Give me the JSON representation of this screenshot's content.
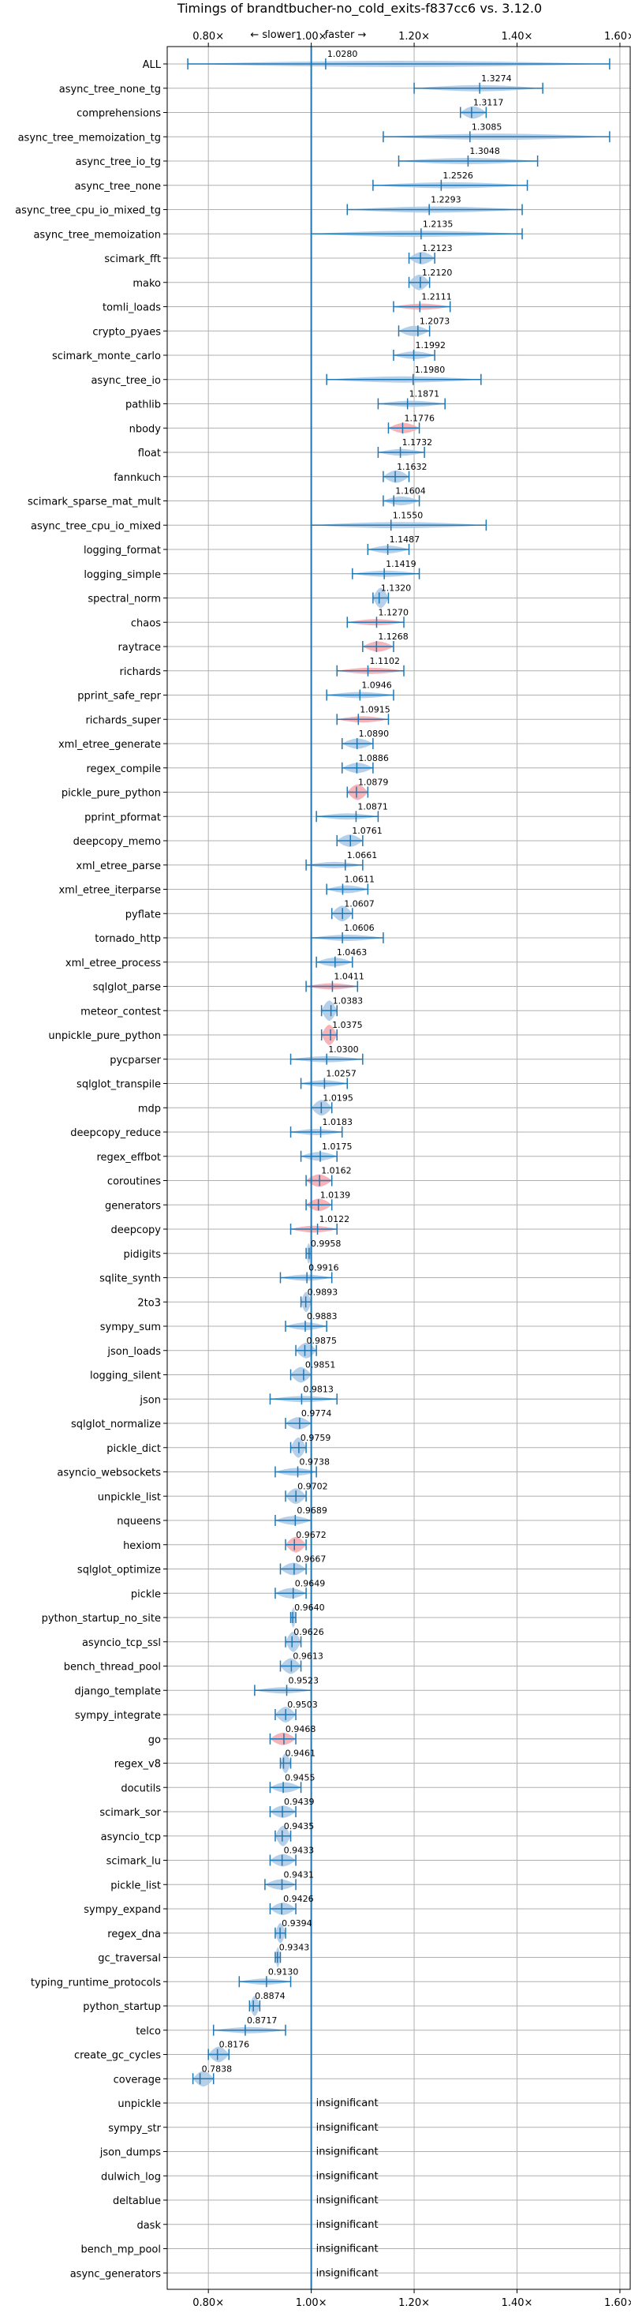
{
  "chart_data": {
    "type": "violin",
    "title": "Timings of brandtbucher-no_cold_exits-f837cc6 vs. 3.12.0",
    "xlabel": "",
    "ylabel": "",
    "x_scale": "linear",
    "xlim": [
      0.72,
      1.62
    ],
    "xticks": [
      0.8,
      1.0,
      1.2,
      1.4,
      1.6
    ],
    "xtick_labels": [
      "0.80×",
      "1.00×",
      "1.20×",
      "1.40×",
      "1.60×"
    ],
    "slower_label": "← slower",
    "faster_label": "faster →",
    "reference_line": 1.0,
    "grid": true,
    "insignificant_label": "insignificant",
    "colors": {
      "normal": "#a9c8e6",
      "highlight": "#f4a6ab",
      "line": "#1f77b4",
      "grid": "#b0b0b0"
    },
    "benchmarks": [
      {
        "name": "ALL",
        "value": 1.028,
        "label": "1.0280",
        "min": 0.76,
        "max": 1.58,
        "highlight": false,
        "insignificant": false
      },
      {
        "name": "async_tree_none_tg",
        "value": 1.3274,
        "label": "1.3274",
        "min": 1.2,
        "max": 1.45,
        "highlight": false,
        "insignificant": false
      },
      {
        "name": "comprehensions",
        "value": 1.3117,
        "label": "1.3117",
        "min": 1.29,
        "max": 1.34,
        "highlight": false,
        "insignificant": false
      },
      {
        "name": "async_tree_memoization_tg",
        "value": 1.3085,
        "label": "1.3085",
        "min": 1.14,
        "max": 1.58,
        "highlight": false,
        "insignificant": false
      },
      {
        "name": "async_tree_io_tg",
        "value": 1.3048,
        "label": "1.3048",
        "min": 1.17,
        "max": 1.44,
        "highlight": false,
        "insignificant": false
      },
      {
        "name": "async_tree_none",
        "value": 1.2526,
        "label": "1.2526",
        "min": 1.12,
        "max": 1.42,
        "highlight": false,
        "insignificant": false
      },
      {
        "name": "async_tree_cpu_io_mixed_tg",
        "value": 1.2293,
        "label": "1.2293",
        "min": 1.07,
        "max": 1.41,
        "highlight": false,
        "insignificant": false
      },
      {
        "name": "async_tree_memoization",
        "value": 1.2135,
        "label": "1.2135",
        "min": 1.0,
        "max": 1.41,
        "highlight": false,
        "insignificant": false
      },
      {
        "name": "scimark_fft",
        "value": 1.2123,
        "label": "1.2123",
        "min": 1.19,
        "max": 1.24,
        "highlight": false,
        "insignificant": false
      },
      {
        "name": "mako",
        "value": 1.212,
        "label": "1.2120",
        "min": 1.19,
        "max": 1.23,
        "highlight": false,
        "insignificant": false
      },
      {
        "name": "tomli_loads",
        "value": 1.2111,
        "label": "1.2111",
        "min": 1.16,
        "max": 1.27,
        "highlight": true,
        "insignificant": false
      },
      {
        "name": "crypto_pyaes",
        "value": 1.2073,
        "label": "1.2073",
        "min": 1.17,
        "max": 1.23,
        "highlight": false,
        "insignificant": false
      },
      {
        "name": "scimark_monte_carlo",
        "value": 1.1992,
        "label": "1.1992",
        "min": 1.16,
        "max": 1.24,
        "highlight": false,
        "insignificant": false
      },
      {
        "name": "async_tree_io",
        "value": 1.198,
        "label": "1.1980",
        "min": 1.03,
        "max": 1.33,
        "highlight": false,
        "insignificant": false
      },
      {
        "name": "pathlib",
        "value": 1.1871,
        "label": "1.1871",
        "min": 1.13,
        "max": 1.26,
        "highlight": false,
        "insignificant": false
      },
      {
        "name": "nbody",
        "value": 1.1776,
        "label": "1.1776",
        "min": 1.15,
        "max": 1.21,
        "highlight": true,
        "insignificant": false
      },
      {
        "name": "float",
        "value": 1.1732,
        "label": "1.1732",
        "min": 1.13,
        "max": 1.22,
        "highlight": false,
        "insignificant": false
      },
      {
        "name": "fannkuch",
        "value": 1.1632,
        "label": "1.1632",
        "min": 1.14,
        "max": 1.19,
        "highlight": false,
        "insignificant": false
      },
      {
        "name": "scimark_sparse_mat_mult",
        "value": 1.1604,
        "label": "1.1604",
        "min": 1.14,
        "max": 1.21,
        "highlight": false,
        "insignificant": false
      },
      {
        "name": "async_tree_cpu_io_mixed",
        "value": 1.155,
        "label": "1.1550",
        "min": 1.0,
        "max": 1.34,
        "highlight": false,
        "insignificant": false
      },
      {
        "name": "logging_format",
        "value": 1.1487,
        "label": "1.1487",
        "min": 1.11,
        "max": 1.19,
        "highlight": false,
        "insignificant": false
      },
      {
        "name": "logging_simple",
        "value": 1.1419,
        "label": "1.1419",
        "min": 1.08,
        "max": 1.21,
        "highlight": false,
        "insignificant": false
      },
      {
        "name": "spectral_norm",
        "value": 1.132,
        "label": "1.1320",
        "min": 1.12,
        "max": 1.15,
        "highlight": false,
        "insignificant": false
      },
      {
        "name": "chaos",
        "value": 1.127,
        "label": "1.1270",
        "min": 1.07,
        "max": 1.18,
        "highlight": true,
        "insignificant": false
      },
      {
        "name": "raytrace",
        "value": 1.1268,
        "label": "1.1268",
        "min": 1.1,
        "max": 1.16,
        "highlight": true,
        "insignificant": false
      },
      {
        "name": "richards",
        "value": 1.1102,
        "label": "1.1102",
        "min": 1.05,
        "max": 1.18,
        "highlight": true,
        "insignificant": false
      },
      {
        "name": "pprint_safe_repr",
        "value": 1.0946,
        "label": "1.0946",
        "min": 1.03,
        "max": 1.16,
        "highlight": false,
        "insignificant": false
      },
      {
        "name": "richards_super",
        "value": 1.0915,
        "label": "1.0915",
        "min": 1.05,
        "max": 1.15,
        "highlight": true,
        "insignificant": false
      },
      {
        "name": "xml_etree_generate",
        "value": 1.089,
        "label": "1.0890",
        "min": 1.06,
        "max": 1.12,
        "highlight": false,
        "insignificant": false
      },
      {
        "name": "regex_compile",
        "value": 1.0886,
        "label": "1.0886",
        "min": 1.06,
        "max": 1.12,
        "highlight": false,
        "insignificant": false
      },
      {
        "name": "pickle_pure_python",
        "value": 1.0879,
        "label": "1.0879",
        "min": 1.07,
        "max": 1.11,
        "highlight": true,
        "insignificant": false
      },
      {
        "name": "pprint_pformat",
        "value": 1.0871,
        "label": "1.0871",
        "min": 1.01,
        "max": 1.13,
        "highlight": false,
        "insignificant": false
      },
      {
        "name": "deepcopy_memo",
        "value": 1.0761,
        "label": "1.0761",
        "min": 1.05,
        "max": 1.1,
        "highlight": false,
        "insignificant": false
      },
      {
        "name": "xml_etree_parse",
        "value": 1.0661,
        "label": "1.0661",
        "min": 0.99,
        "max": 1.1,
        "highlight": false,
        "insignificant": false
      },
      {
        "name": "xml_etree_iterparse",
        "value": 1.0611,
        "label": "1.0611",
        "min": 1.03,
        "max": 1.11,
        "highlight": false,
        "insignificant": false
      },
      {
        "name": "pyflate",
        "value": 1.0607,
        "label": "1.0607",
        "min": 1.04,
        "max": 1.08,
        "highlight": false,
        "insignificant": false
      },
      {
        "name": "tornado_http",
        "value": 1.0606,
        "label": "1.0606",
        "min": 1.0,
        "max": 1.14,
        "highlight": false,
        "insignificant": false
      },
      {
        "name": "xml_etree_process",
        "value": 1.0463,
        "label": "1.0463",
        "min": 1.01,
        "max": 1.08,
        "highlight": false,
        "insignificant": false
      },
      {
        "name": "sqlglot_parse",
        "value": 1.0411,
        "label": "1.0411",
        "min": 0.99,
        "max": 1.09,
        "highlight": true,
        "insignificant": false
      },
      {
        "name": "meteor_contest",
        "value": 1.0383,
        "label": "1.0383",
        "min": 1.02,
        "max": 1.05,
        "highlight": false,
        "insignificant": false
      },
      {
        "name": "unpickle_pure_python",
        "value": 1.0375,
        "label": "1.0375",
        "min": 1.02,
        "max": 1.05,
        "highlight": true,
        "insignificant": false
      },
      {
        "name": "pycparser",
        "value": 1.03,
        "label": "1.0300",
        "min": 0.96,
        "max": 1.1,
        "highlight": false,
        "insignificant": false
      },
      {
        "name": "sqlglot_transpile",
        "value": 1.0257,
        "label": "1.0257",
        "min": 0.98,
        "max": 1.07,
        "highlight": false,
        "insignificant": false
      },
      {
        "name": "mdp",
        "value": 1.0195,
        "label": "1.0195",
        "min": 1.0,
        "max": 1.04,
        "highlight": false,
        "insignificant": false
      },
      {
        "name": "deepcopy_reduce",
        "value": 1.0183,
        "label": "1.0183",
        "min": 0.96,
        "max": 1.06,
        "highlight": false,
        "insignificant": false
      },
      {
        "name": "regex_effbot",
        "value": 1.0175,
        "label": "1.0175",
        "min": 0.98,
        "max": 1.05,
        "highlight": false,
        "insignificant": false
      },
      {
        "name": "coroutines",
        "value": 1.0162,
        "label": "1.0162",
        "min": 0.99,
        "max": 1.04,
        "highlight": true,
        "insignificant": false
      },
      {
        "name": "generators",
        "value": 1.0139,
        "label": "1.0139",
        "min": 0.99,
        "max": 1.04,
        "highlight": true,
        "insignificant": false
      },
      {
        "name": "deepcopy",
        "value": 1.0122,
        "label": "1.0122",
        "min": 0.96,
        "max": 1.05,
        "highlight": true,
        "insignificant": false
      },
      {
        "name": "pidigits",
        "value": 0.9958,
        "label": "0.9958",
        "min": 0.99,
        "max": 1.0,
        "highlight": false,
        "insignificant": false
      },
      {
        "name": "sqlite_synth",
        "value": 0.9916,
        "label": "0.9916",
        "min": 0.94,
        "max": 1.04,
        "highlight": false,
        "insignificant": false
      },
      {
        "name": "2to3",
        "value": 0.9893,
        "label": "0.9893",
        "min": 0.98,
        "max": 1.0,
        "highlight": false,
        "insignificant": false
      },
      {
        "name": "sympy_sum",
        "value": 0.9883,
        "label": "0.9883",
        "min": 0.95,
        "max": 1.03,
        "highlight": false,
        "insignificant": false
      },
      {
        "name": "json_loads",
        "value": 0.9875,
        "label": "0.9875",
        "min": 0.97,
        "max": 1.01,
        "highlight": false,
        "insignificant": false
      },
      {
        "name": "logging_silent",
        "value": 0.9851,
        "label": "0.9851",
        "min": 0.96,
        "max": 1.0,
        "highlight": false,
        "insignificant": false
      },
      {
        "name": "json",
        "value": 0.9813,
        "label": "0.9813",
        "min": 0.92,
        "max": 1.05,
        "highlight": false,
        "insignificant": false
      },
      {
        "name": "sqlglot_normalize",
        "value": 0.9774,
        "label": "0.9774",
        "min": 0.95,
        "max": 1.0,
        "highlight": false,
        "insignificant": false
      },
      {
        "name": "pickle_dict",
        "value": 0.9759,
        "label": "0.9759",
        "min": 0.96,
        "max": 0.99,
        "highlight": false,
        "insignificant": false
      },
      {
        "name": "asyncio_websockets",
        "value": 0.9738,
        "label": "0.9738",
        "min": 0.93,
        "max": 1.01,
        "highlight": false,
        "insignificant": false
      },
      {
        "name": "unpickle_list",
        "value": 0.9702,
        "label": "0.9702",
        "min": 0.95,
        "max": 0.99,
        "highlight": false,
        "insignificant": false
      },
      {
        "name": "nqueens",
        "value": 0.9689,
        "label": "0.9689",
        "min": 0.93,
        "max": 1.0,
        "highlight": false,
        "insignificant": false
      },
      {
        "name": "hexiom",
        "value": 0.9672,
        "label": "0.9672",
        "min": 0.95,
        "max": 0.99,
        "highlight": true,
        "insignificant": false
      },
      {
        "name": "sqlglot_optimize",
        "value": 0.9667,
        "label": "0.9667",
        "min": 0.94,
        "max": 0.99,
        "highlight": false,
        "insignificant": false
      },
      {
        "name": "pickle",
        "value": 0.9649,
        "label": "0.9649",
        "min": 0.93,
        "max": 0.99,
        "highlight": false,
        "insignificant": false
      },
      {
        "name": "python_startup_no_site",
        "value": 0.964,
        "label": "0.9640",
        "min": 0.96,
        "max": 0.97,
        "highlight": false,
        "insignificant": false
      },
      {
        "name": "asyncio_tcp_ssl",
        "value": 0.9626,
        "label": "0.9626",
        "min": 0.95,
        "max": 0.98,
        "highlight": false,
        "insignificant": false
      },
      {
        "name": "bench_thread_pool",
        "value": 0.9613,
        "label": "0.9613",
        "min": 0.94,
        "max": 0.98,
        "highlight": false,
        "insignificant": false
      },
      {
        "name": "django_template",
        "value": 0.9523,
        "label": "0.9523",
        "min": 0.89,
        "max": 1.0,
        "highlight": false,
        "insignificant": false
      },
      {
        "name": "sympy_integrate",
        "value": 0.9503,
        "label": "0.9503",
        "min": 0.93,
        "max": 0.97,
        "highlight": false,
        "insignificant": false
      },
      {
        "name": "go",
        "value": 0.9468,
        "label": "0.9468",
        "min": 0.92,
        "max": 0.97,
        "highlight": true,
        "insignificant": false
      },
      {
        "name": "regex_v8",
        "value": 0.9461,
        "label": "0.9461",
        "min": 0.94,
        "max": 0.96,
        "highlight": false,
        "insignificant": false
      },
      {
        "name": "docutils",
        "value": 0.9455,
        "label": "0.9455",
        "min": 0.92,
        "max": 0.98,
        "highlight": false,
        "insignificant": false
      },
      {
        "name": "scimark_sor",
        "value": 0.9439,
        "label": "0.9439",
        "min": 0.92,
        "max": 0.97,
        "highlight": false,
        "insignificant": false
      },
      {
        "name": "asyncio_tcp",
        "value": 0.9435,
        "label": "0.9435",
        "min": 0.93,
        "max": 0.96,
        "highlight": false,
        "insignificant": false
      },
      {
        "name": "scimark_lu",
        "value": 0.9433,
        "label": "0.9433",
        "min": 0.92,
        "max": 0.97,
        "highlight": false,
        "insignificant": false
      },
      {
        "name": "pickle_list",
        "value": 0.9431,
        "label": "0.9431",
        "min": 0.91,
        "max": 0.97,
        "highlight": false,
        "insignificant": false
      },
      {
        "name": "sympy_expand",
        "value": 0.9426,
        "label": "0.9426",
        "min": 0.92,
        "max": 0.97,
        "highlight": false,
        "insignificant": false
      },
      {
        "name": "regex_dna",
        "value": 0.9394,
        "label": "0.9394",
        "min": 0.93,
        "max": 0.95,
        "highlight": false,
        "insignificant": false
      },
      {
        "name": "gc_traversal",
        "value": 0.9343,
        "label": "0.9343",
        "min": 0.93,
        "max": 0.94,
        "highlight": false,
        "insignificant": false
      },
      {
        "name": "typing_runtime_protocols",
        "value": 0.913,
        "label": "0.9130",
        "min": 0.86,
        "max": 0.96,
        "highlight": false,
        "insignificant": false
      },
      {
        "name": "python_startup",
        "value": 0.8874,
        "label": "0.8874",
        "min": 0.88,
        "max": 0.9,
        "highlight": false,
        "insignificant": false
      },
      {
        "name": "telco",
        "value": 0.8717,
        "label": "0.8717",
        "min": 0.81,
        "max": 0.95,
        "highlight": false,
        "insignificant": false
      },
      {
        "name": "create_gc_cycles",
        "value": 0.8176,
        "label": "0.8176",
        "min": 0.8,
        "max": 0.84,
        "highlight": false,
        "insignificant": false
      },
      {
        "name": "coverage",
        "value": 0.7838,
        "label": "0.7838",
        "min": 0.77,
        "max": 0.81,
        "highlight": false,
        "insignificant": false
      },
      {
        "name": "unpickle",
        "value": null,
        "label": "",
        "min": null,
        "max": null,
        "highlight": false,
        "insignificant": true
      },
      {
        "name": "sympy_str",
        "value": null,
        "label": "",
        "min": null,
        "max": null,
        "highlight": false,
        "insignificant": true
      },
      {
        "name": "json_dumps",
        "value": null,
        "label": "",
        "min": null,
        "max": null,
        "highlight": false,
        "insignificant": true
      },
      {
        "name": "dulwich_log",
        "value": null,
        "label": "",
        "min": null,
        "max": null,
        "highlight": false,
        "insignificant": true
      },
      {
        "name": "deltablue",
        "value": null,
        "label": "",
        "min": null,
        "max": null,
        "highlight": false,
        "insignificant": true
      },
      {
        "name": "dask",
        "value": null,
        "label": "",
        "min": null,
        "max": null,
        "highlight": false,
        "insignificant": true
      },
      {
        "name": "bench_mp_pool",
        "value": null,
        "label": "",
        "min": null,
        "max": null,
        "highlight": false,
        "insignificant": true
      },
      {
        "name": "async_generators",
        "value": null,
        "label": "",
        "min": null,
        "max": null,
        "highlight": false,
        "insignificant": true
      }
    ]
  }
}
